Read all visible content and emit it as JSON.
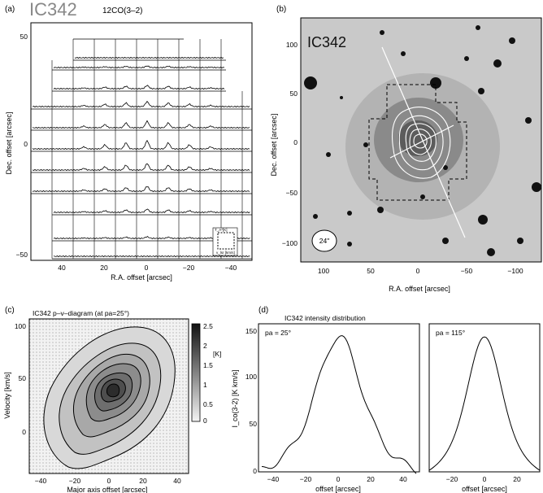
{
  "panel_a": {
    "tag": "(a)",
    "object": "IC342",
    "line": "12CO(3–2)",
    "xlabel": "R.A. offset [arcsec]",
    "ylabel": "Dec. offset [arcsec]",
    "xticks": [
      "40",
      "20",
      "0",
      "−20",
      "−40"
    ],
    "yticks": [
      "50",
      "0",
      "−50"
    ],
    "inset": {
      "top": "T_A*[K]",
      "bottom": "v_lsr [km/s]"
    }
  },
  "panel_b": {
    "tag": "(b)",
    "object": "IC342",
    "xlabel": "R.A. offset [arcsec]",
    "ylabel": "Dec. offset [arcsec]",
    "xticks": [
      "100",
      "50",
      "0",
      "−50",
      "−100"
    ],
    "yticks": [
      "100",
      "50",
      "0",
      "−50",
      "−100"
    ],
    "beam": "24\""
  },
  "panel_c": {
    "tag": "(c)",
    "title": "IC342   p–v–diagram  (at pa=25°)",
    "xlabel": "Major axis offset [arcsec]",
    "ylabel": "Velocity [km/s]",
    "xticks": [
      "−40",
      "−20",
      "0",
      "20",
      "40"
    ],
    "yticks": [
      "100",
      "50",
      "0"
    ],
    "colorbar_ticks": [
      "2.5",
      "2",
      "1.5",
      "1",
      "0.5",
      "0"
    ],
    "colorbar_label": "[K]"
  },
  "panel_d": {
    "tag": "(d)",
    "title": "IC342  intensity distribution",
    "ylabel": "I_co(3-2) [K km/s]",
    "yticks": [
      "150",
      "100",
      "50",
      "0"
    ],
    "left": {
      "pa": "pa = 25°",
      "xlabel": "offset [arcsec]",
      "xticks": [
        "−40",
        "−20",
        "0",
        "20",
        "40"
      ]
    },
    "right": {
      "pa": "pa = 115°",
      "xlabel": "offset [arcsec]",
      "xticks": [
        "−20",
        "0",
        "20"
      ]
    }
  }
}
